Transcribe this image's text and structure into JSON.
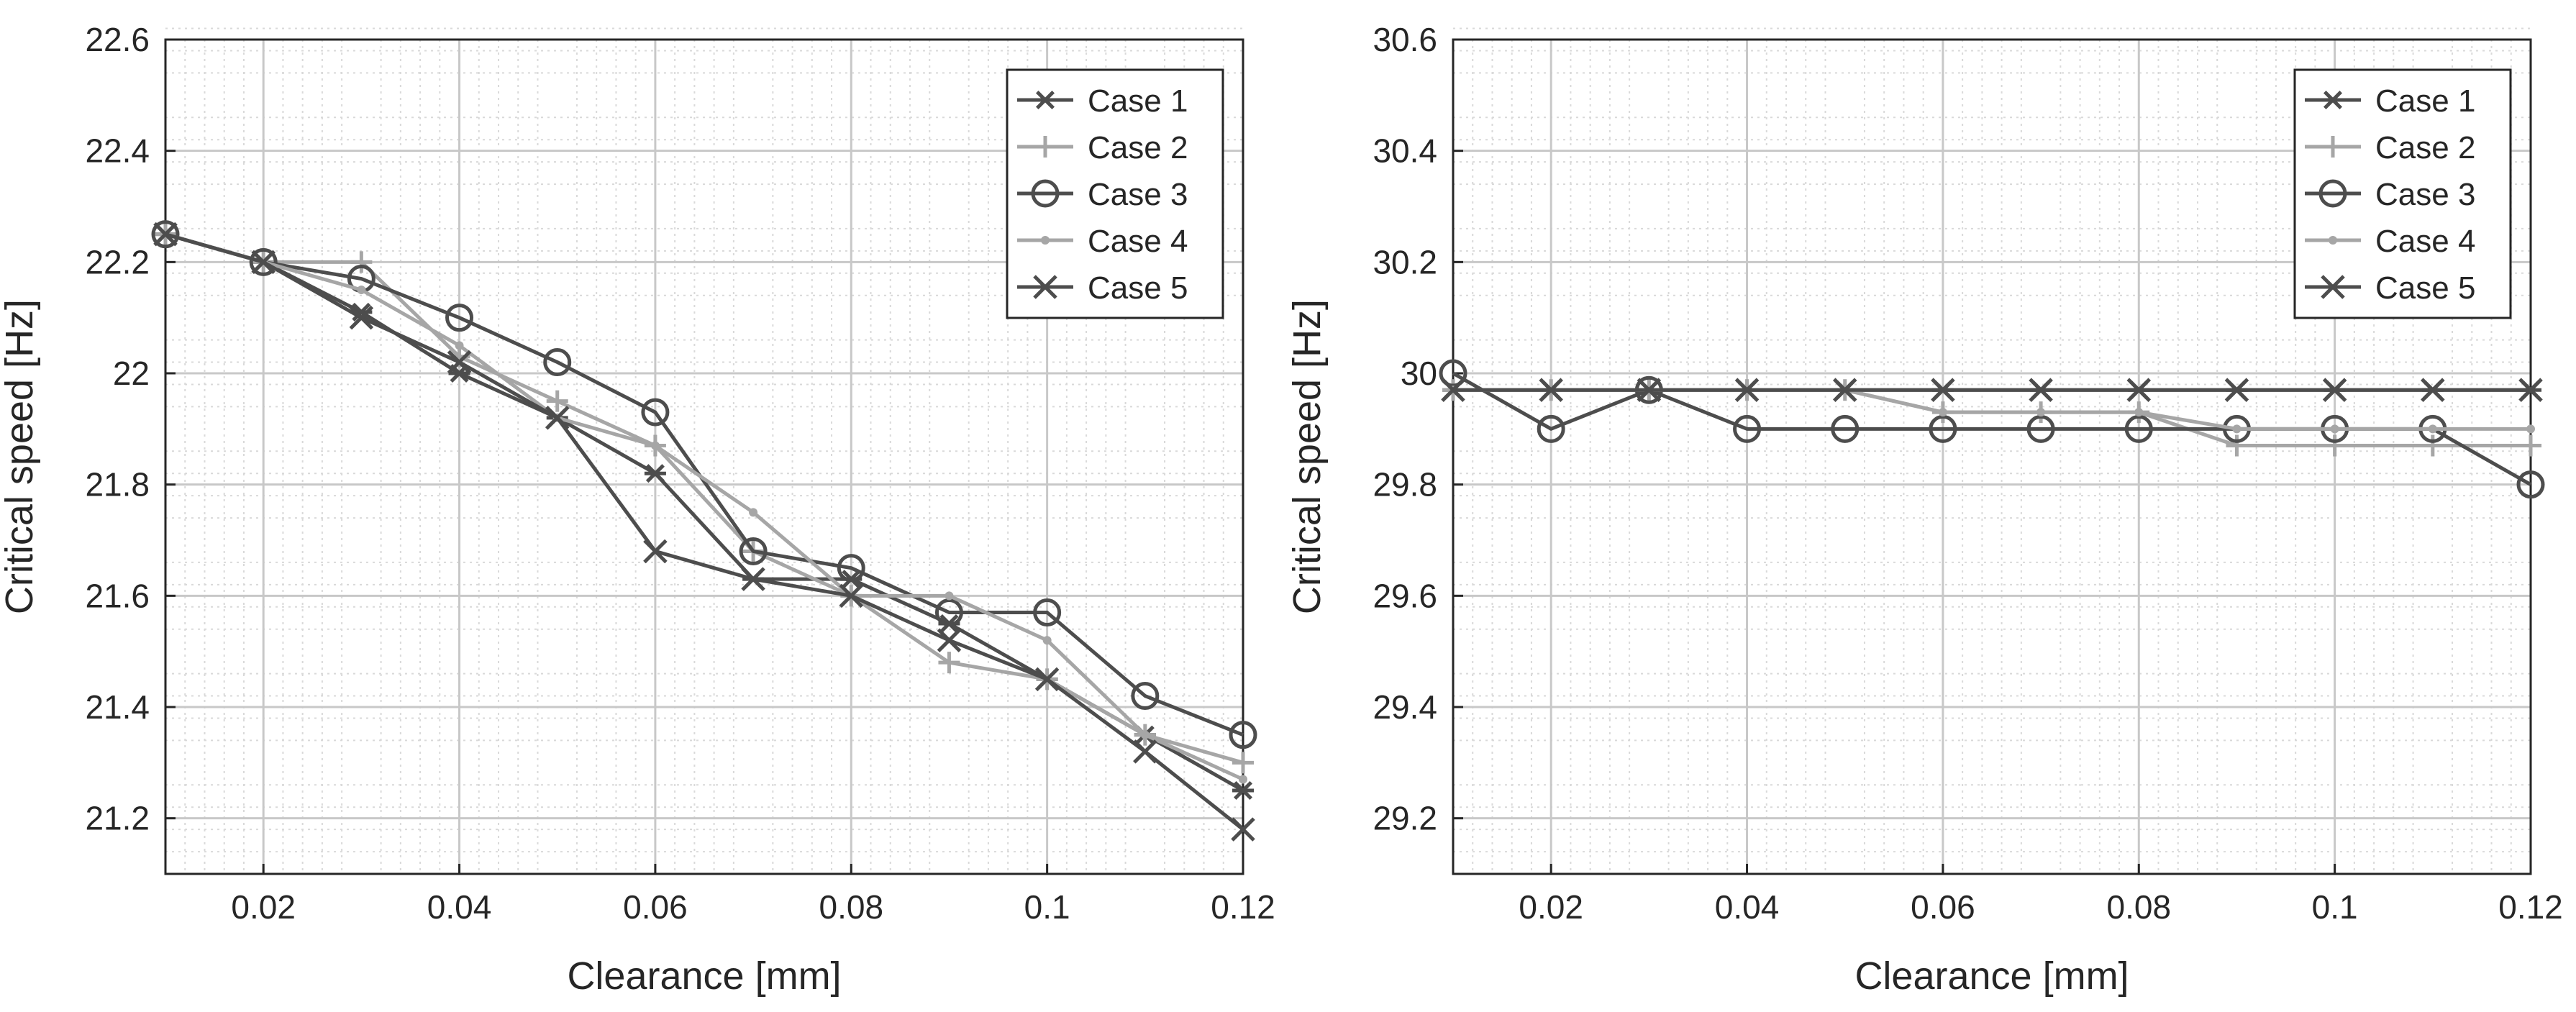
{
  "chart_data": [
    {
      "type": "line",
      "title": "",
      "xlabel": "Clearance [mm]",
      "ylabel": "Critical speed [Hz]",
      "xlim": [
        0.01,
        0.12
      ],
      "ylim": [
        21.1,
        22.6
      ],
      "xticks": [
        0.02,
        0.04,
        0.06,
        0.08,
        0.1,
        0.12
      ],
      "xtick_labels": [
        "0.02",
        "0.04",
        "0.06",
        "0.08",
        "0.1",
        "0.12"
      ],
      "yticks": [
        21.2,
        21.4,
        21.6,
        21.8,
        22.0,
        22.2,
        22.4,
        22.6
      ],
      "ytick_labels": [
        "21.2",
        "21.4",
        "21.6",
        "21.8",
        "22",
        "22.2",
        "22.4",
        "22.6"
      ],
      "grid": true,
      "minor_grid": true,
      "legend_location": "top-right",
      "x": [
        0.01,
        0.02,
        0.03,
        0.04,
        0.05,
        0.06,
        0.07,
        0.08,
        0.09,
        0.1,
        0.11,
        0.12
      ],
      "series": [
        {
          "name": "Case 1",
          "marker": "asterisk",
          "color": "#4d4d4d",
          "values": [
            22.25,
            22.2,
            22.11,
            22.0,
            21.92,
            21.82,
            21.63,
            21.63,
            21.55,
            21.45,
            21.35,
            21.25
          ]
        },
        {
          "name": "Case 2",
          "marker": "plus",
          "color": "#a6a6a6",
          "values": [
            22.25,
            22.2,
            22.2,
            22.03,
            21.95,
            21.87,
            21.68,
            21.6,
            21.48,
            21.45,
            21.35,
            21.3
          ]
        },
        {
          "name": "Case 3",
          "marker": "circle",
          "color": "#4d4d4d",
          "values": [
            22.25,
            22.2,
            22.17,
            22.1,
            22.02,
            21.93,
            21.68,
            21.65,
            21.57,
            21.57,
            21.42,
            21.35
          ]
        },
        {
          "name": "Case 4",
          "marker": "dot",
          "color": "#a6a6a6",
          "values": [
            22.25,
            22.2,
            22.15,
            22.05,
            21.92,
            21.87,
            21.75,
            21.6,
            21.6,
            21.52,
            21.35,
            21.27
          ]
        },
        {
          "name": "Case 5",
          "marker": "x",
          "color": "#4d4d4d",
          "values": [
            22.25,
            22.2,
            22.1,
            22.02,
            21.92,
            21.68,
            21.63,
            21.6,
            21.52,
            21.45,
            21.32,
            21.18
          ]
        }
      ]
    },
    {
      "type": "line",
      "title": "",
      "xlabel": "Clearance [mm]",
      "ylabel": "Critical speed [Hz]",
      "xlim": [
        0.01,
        0.12
      ],
      "ylim": [
        29.1,
        30.6
      ],
      "xticks": [
        0.02,
        0.04,
        0.06,
        0.08,
        0.1,
        0.12
      ],
      "xtick_labels": [
        "0.02",
        "0.04",
        "0.06",
        "0.08",
        "0.1",
        "0.12"
      ],
      "yticks": [
        29.2,
        29.4,
        29.6,
        29.8,
        30.0,
        30.2,
        30.4,
        30.6
      ],
      "ytick_labels": [
        "29.2",
        "29.4",
        "29.6",
        "29.8",
        "30",
        "30.2",
        "30.4",
        "30.6"
      ],
      "grid": true,
      "minor_grid": true,
      "legend_location": "top-right",
      "x": [
        0.01,
        0.02,
        0.03,
        0.04,
        0.05,
        0.06,
        0.07,
        0.08,
        0.09,
        0.1,
        0.11,
        0.12
      ],
      "series": [
        {
          "name": "Case 1",
          "marker": "asterisk",
          "color": "#4d4d4d",
          "values": [
            29.97,
            29.97,
            29.97,
            29.97,
            29.97,
            29.97,
            29.97,
            29.97,
            29.97,
            29.97,
            29.97,
            29.97
          ]
        },
        {
          "name": "Case 2",
          "marker": "plus",
          "color": "#a6a6a6",
          "values": [
            29.97,
            29.97,
            29.97,
            29.97,
            29.97,
            29.93,
            29.93,
            29.93,
            29.87,
            29.87,
            29.87,
            29.87
          ]
        },
        {
          "name": "Case 3",
          "marker": "circle",
          "color": "#4d4d4d",
          "values": [
            30.0,
            29.9,
            29.97,
            29.9,
            29.9,
            29.9,
            29.9,
            29.9,
            29.9,
            29.9,
            29.9,
            29.8
          ]
        },
        {
          "name": "Case 4",
          "marker": "dot",
          "color": "#a6a6a6",
          "values": [
            29.97,
            29.97,
            29.97,
            29.97,
            29.97,
            29.93,
            29.93,
            29.93,
            29.9,
            29.9,
            29.9,
            29.9
          ]
        },
        {
          "name": "Case 5",
          "marker": "x",
          "color": "#4d4d4d",
          "values": [
            29.97,
            29.97,
            29.97,
            29.97,
            29.97,
            29.97,
            29.97,
            29.97,
            29.97,
            29.97,
            29.97,
            29.97
          ]
        }
      ]
    }
  ]
}
